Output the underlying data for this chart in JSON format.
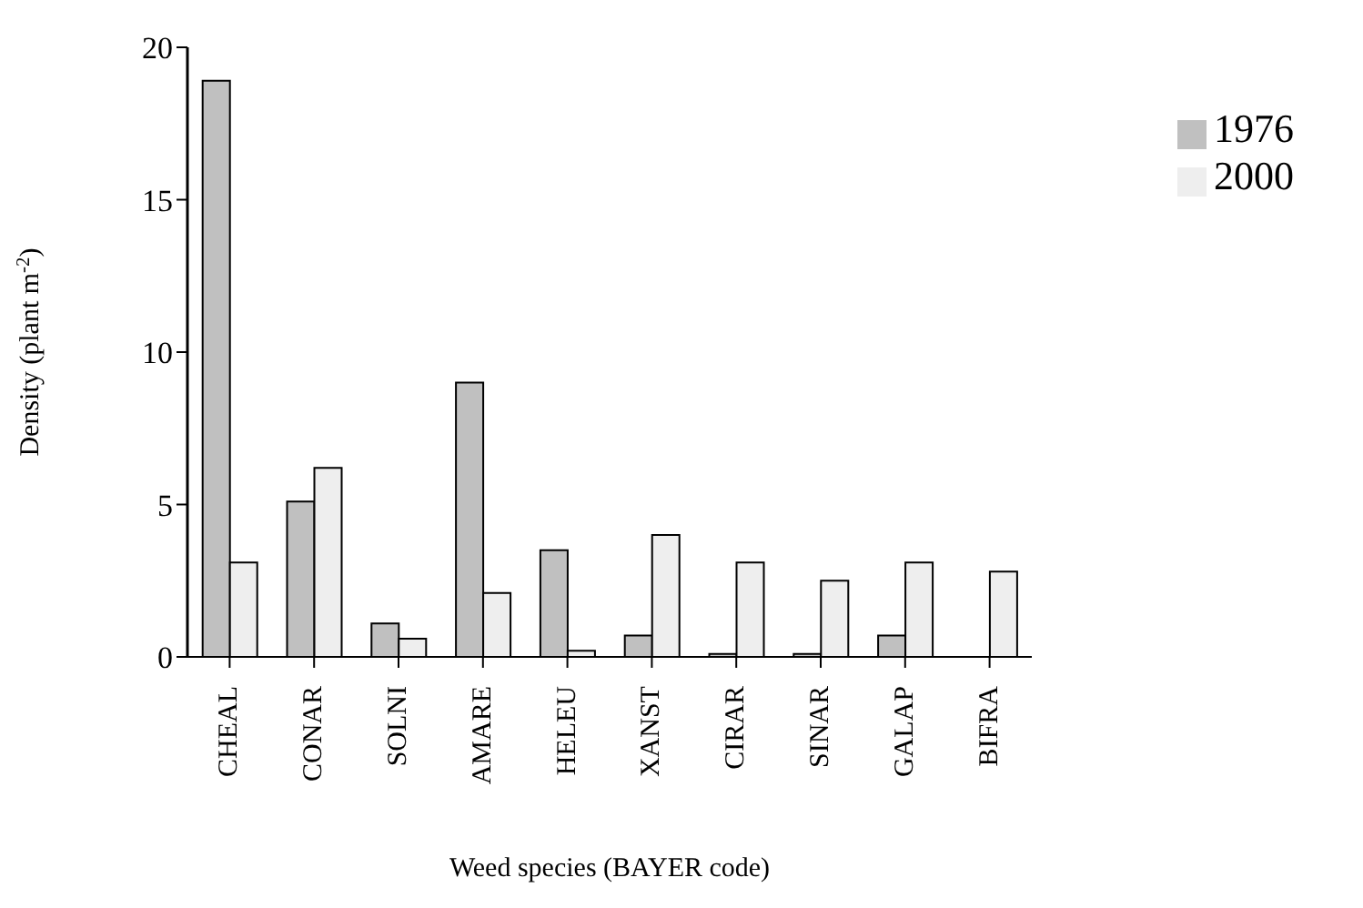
{
  "chart_data": {
    "type": "bar",
    "xlabel": "Weed species (BAYER code)",
    "ylabel": "Density (plant m$^{-2}$)",
    "categories": [
      "CHEAL",
      "CONAR",
      "SOLNI",
      "AMARE",
      "HELEU",
      "XANST",
      "CIRAR",
      "SINAR",
      "GALAP",
      "BIFRA"
    ],
    "series": [
      {
        "name": "1976",
        "color": "#c0c0c0",
        "values": [
          18.9,
          5.1,
          1.1,
          9.0,
          3.5,
          0.7,
          0.1,
          0.1,
          0.7,
          0
        ]
      },
      {
        "name": "2000",
        "color": "#eeeeee",
        "values": [
          3.1,
          6.2,
          0.6,
          2.1,
          0.2,
          4.0,
          3.1,
          2.5,
          3.1,
          2.8
        ]
      }
    ],
    "ylim": [
      0,
      20
    ],
    "yticks": [
      0,
      5,
      10,
      15,
      20
    ],
    "grid": false,
    "legend": "top right"
  }
}
